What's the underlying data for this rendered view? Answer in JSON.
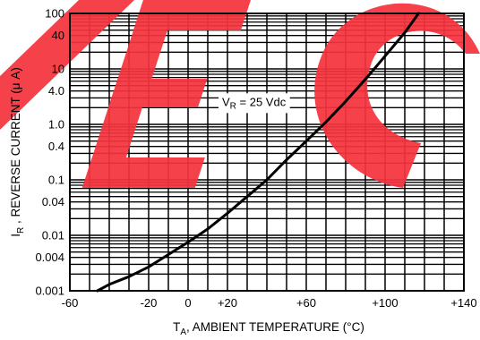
{
  "chart_data": {
    "type": "line",
    "xlabel": {
      "main": "T",
      "sub": "A",
      "rest": ", AMBIENT TEMPERATURE (°C)"
    },
    "ylabel": {
      "main": "I",
      "sub": "R",
      "rest": " , REVERSE CURRENT (μ A)"
    },
    "xlim": [
      -60,
      140
    ],
    "ylim": [
      0.001,
      100
    ],
    "yscale": "log",
    "grid": true,
    "x_ticks": [
      {
        "value": -60,
        "label": "-60"
      },
      {
        "value": -20,
        "label": "-20"
      },
      {
        "value": 0,
        "label": "0"
      },
      {
        "value": 20,
        "label": "+20"
      },
      {
        "value": 60,
        "label": "+60"
      },
      {
        "value": 100,
        "label": "+100"
      },
      {
        "value": 140,
        "label": "+140"
      }
    ],
    "y_ticks": [
      {
        "value": 100,
        "label": "100"
      },
      {
        "value": 40,
        "label": "40"
      },
      {
        "value": 10,
        "label": "10"
      },
      {
        "value": 4,
        "label": "4.0"
      },
      {
        "value": 1,
        "label": "1.0"
      },
      {
        "value": 0.4,
        "label": "0.4"
      },
      {
        "value": 0.1,
        "label": "0.1"
      },
      {
        "value": 0.04,
        "label": "0.04"
      },
      {
        "value": 0.01,
        "label": "0.01"
      },
      {
        "value": 0.004,
        "label": "0.004"
      },
      {
        "value": 0.001,
        "label": "0.001"
      }
    ],
    "series": [
      {
        "x": [
          -46,
          -40,
          -30,
          -20,
          -10,
          0,
          10,
          20,
          30,
          40,
          50,
          60,
          70,
          80,
          90,
          100,
          110,
          117
        ],
        "y": [
          0.001,
          0.0013,
          0.0018,
          0.0027,
          0.0045,
          0.0075,
          0.013,
          0.025,
          0.05,
          0.1,
          0.23,
          0.5,
          1.1,
          2.6,
          6.5,
          17,
          45,
          100
        ],
        "color": "#000000"
      }
    ],
    "annotation": {
      "main": "V",
      "sub": "R",
      "rest": " = 25 Vdc",
      "x": 30,
      "y": 2.5
    },
    "watermark_color": "#f5333d"
  }
}
